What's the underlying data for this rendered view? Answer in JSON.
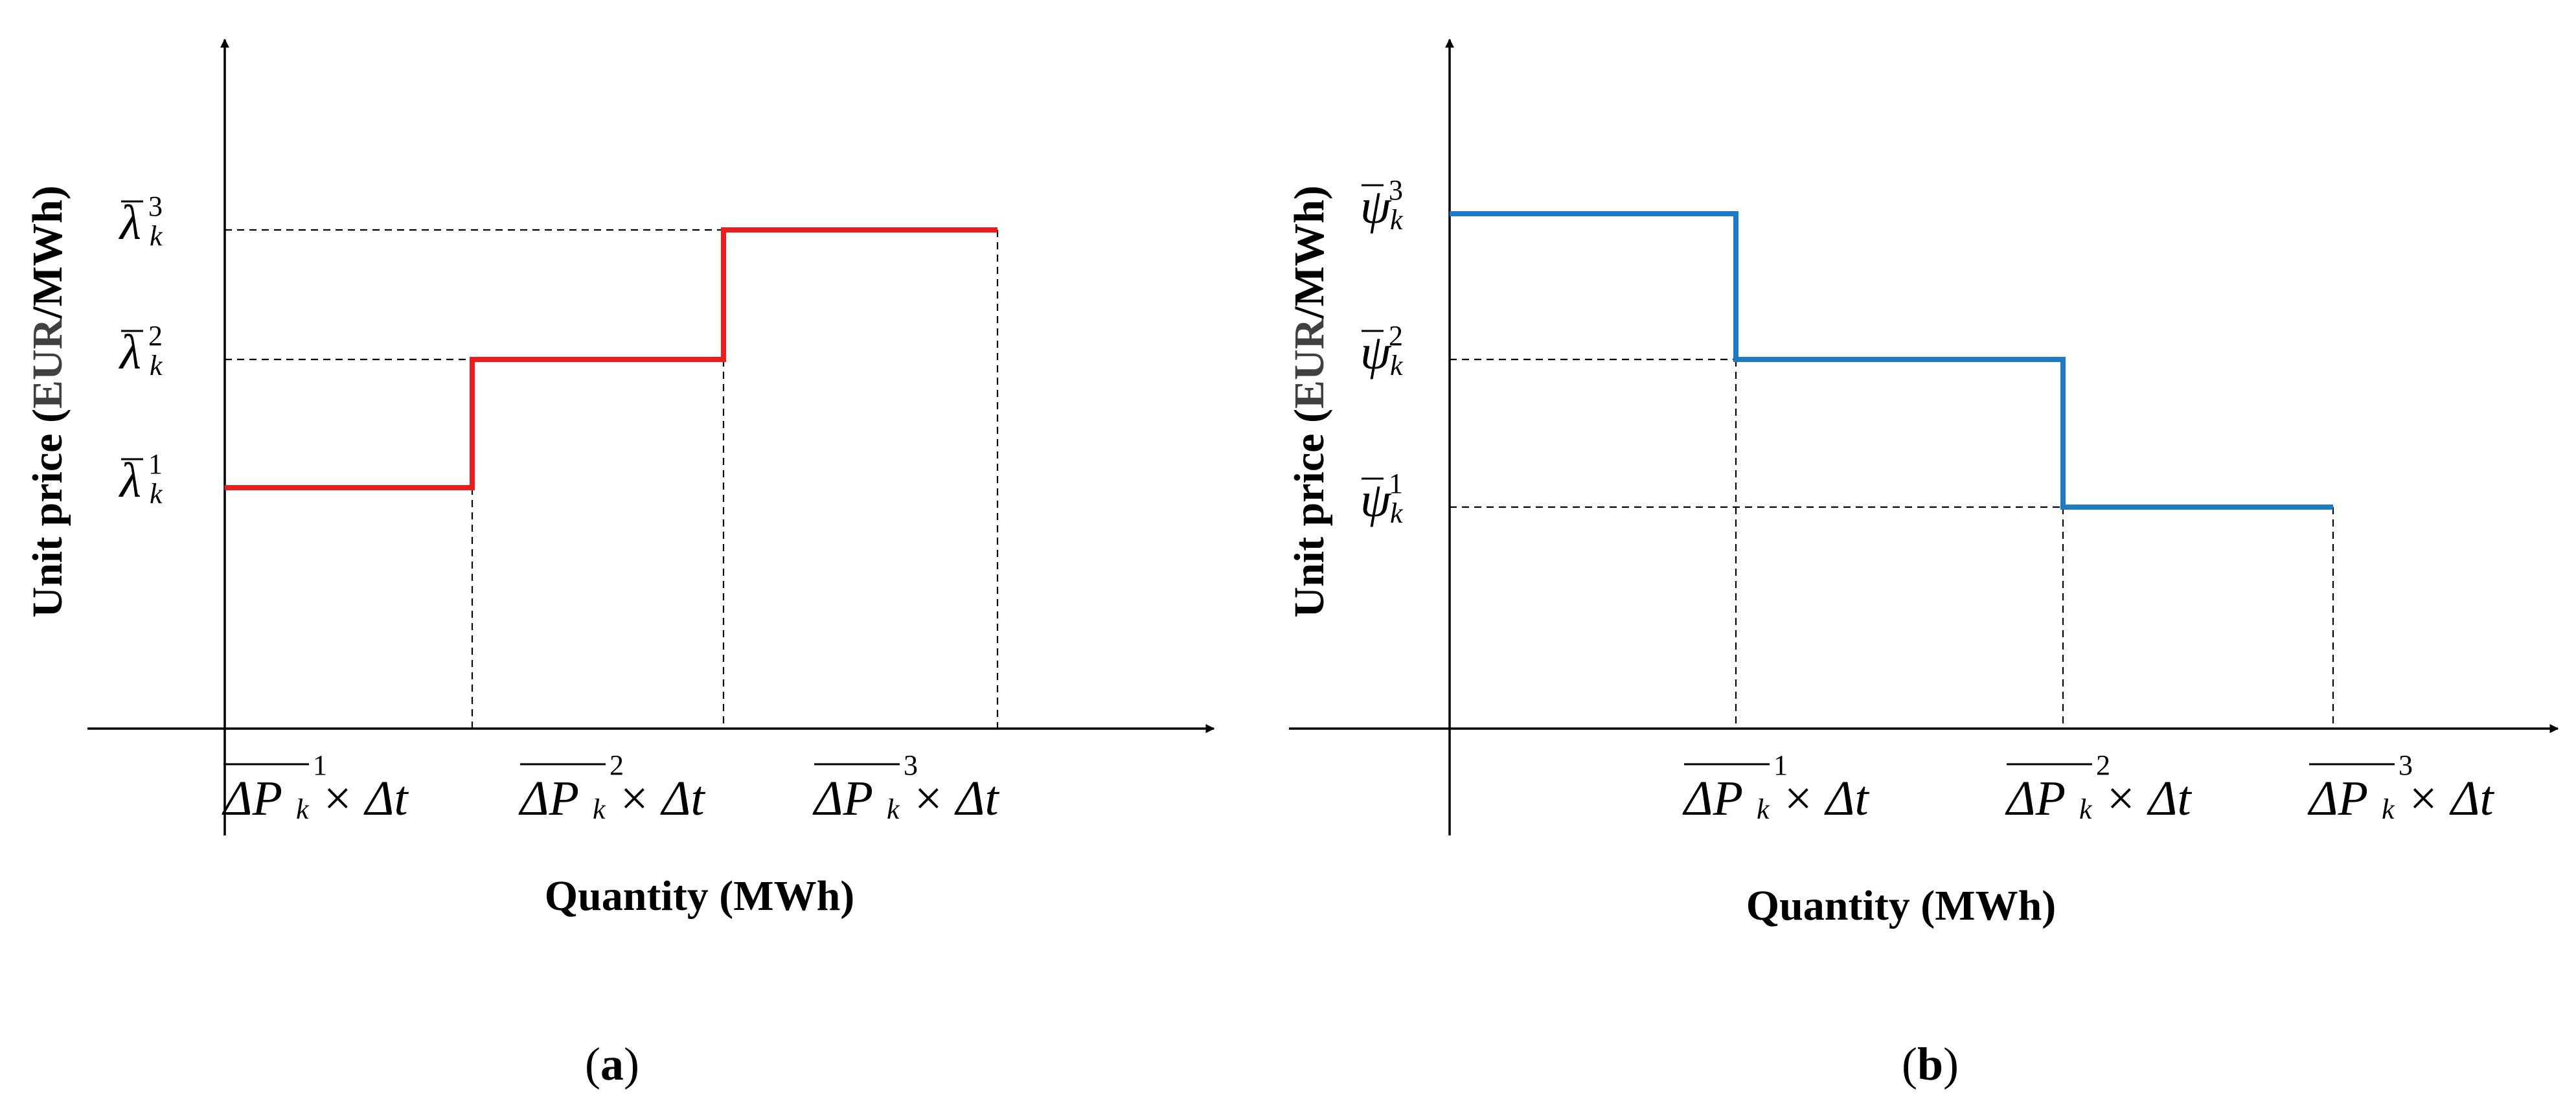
{
  "chart_data": [
    {
      "type": "line",
      "panel_label": "a",
      "panel_label_full": [
        "(",
        "a",
        ")"
      ],
      "xlabel": "Quantity (MWh)",
      "ylabel_parts": [
        "Unit price (",
        "EUR",
        "/MWh)"
      ],
      "symbol": "λ",
      "y_tick_labels": [
        {
          "sym": "λ",
          "sub": "k",
          "sup": "1"
        },
        {
          "sym": "λ",
          "sub": "k",
          "sup": "2"
        },
        {
          "sym": "λ",
          "sub": "k",
          "sup": "3"
        }
      ],
      "x_tick_labels": [
        {
          "main": "ΔP",
          "sub": "k",
          "sup": "1",
          "tail": "× Δt"
        },
        {
          "main": "ΔP",
          "sub": "k",
          "sup": "2",
          "tail": "× Δt"
        },
        {
          "main": "ΔP",
          "sub": "k",
          "sup": "3",
          "tail": "× Δt"
        }
      ],
      "series": [
        {
          "color": "#ee1c1c",
          "x": [
            0,
            1,
            1,
            2,
            2,
            3
          ],
          "y": [
            1,
            1,
            2,
            2,
            3,
            3
          ]
        }
      ],
      "step_direction": "increasing"
    },
    {
      "type": "line",
      "panel_label": "b",
      "panel_label_full": [
        "(",
        "b",
        ")"
      ],
      "xlabel": "Quantity (MWh)",
      "ylabel_parts": [
        "Unit price (",
        "EUR",
        "/MWh)"
      ],
      "symbol": "ψ",
      "y_tick_labels": [
        {
          "sym": "ψ",
          "sub": "k",
          "sup": "1"
        },
        {
          "sym": "ψ",
          "sub": "k",
          "sup": "2"
        },
        {
          "sym": "ψ",
          "sub": "k",
          "sup": "3"
        }
      ],
      "x_tick_labels": [
        {
          "main": "ΔP",
          "sub": "k",
          "sup": "1",
          "tail": "× Δt"
        },
        {
          "main": "ΔP",
          "sub": "k",
          "sup": "2",
          "tail": "× Δt"
        },
        {
          "main": "ΔP",
          "sub": "k",
          "sup": "3",
          "tail": "× Δt"
        }
      ],
      "series": [
        {
          "color": "#1f7ac4",
          "x": [
            0,
            1,
            1,
            2,
            2,
            3
          ],
          "y": [
            3,
            3,
            2,
            2,
            1,
            1
          ]
        }
      ],
      "step_direction": "decreasing"
    }
  ],
  "colors": {
    "axis": "#000000",
    "ylabel_unit_accent": "#404040",
    "panel_a_step": "#ee1c1c",
    "panel_b_step": "#1f7ac4"
  }
}
